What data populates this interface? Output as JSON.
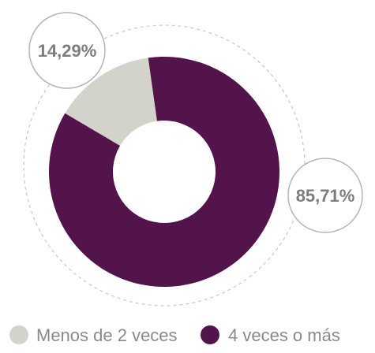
{
  "chart_data": {
    "type": "pie",
    "variant": "donut",
    "categories": [
      "Menos de 2 veces",
      "4 veces o más"
    ],
    "values": [
      14.29,
      85.71
    ],
    "value_labels": [
      "14,29%",
      "85,71%"
    ],
    "colors": [
      "#d3d3cb",
      "#53144b"
    ],
    "title": "",
    "legend_position": "bottom"
  },
  "colors": {
    "bubble_stroke": "#b5b5b5",
    "dashed_ring": "#c7c7c7",
    "label_text": "#7d7d7d",
    "legend_text": "#8a8a8a"
  }
}
